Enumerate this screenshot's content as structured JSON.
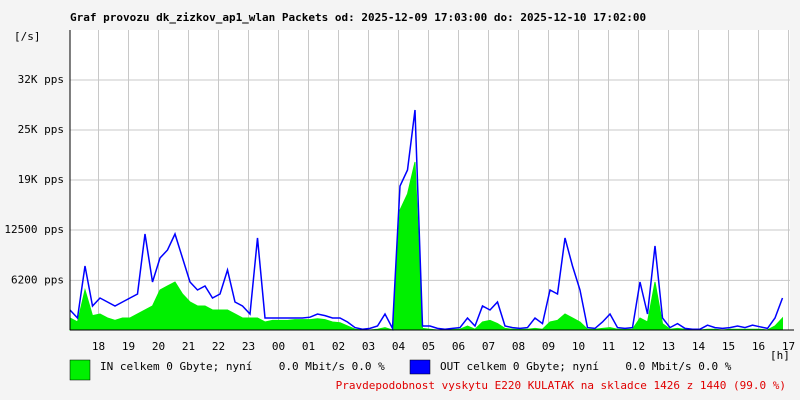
{
  "chart_data": {
    "type": "area-line",
    "title": "Graf provozu dk_zizkov_ap1_wlan Packets od: 2025-12-09 17:03:00 do: 2025-12-10 17:02:00",
    "y_unit": "[/s]",
    "x_unit": "[h]",
    "note": "Pravdepodobnost vyskytu E220 KULATAK na skladce 1426 z 1440 (99.0 %)",
    "grid": true,
    "xlim": [
      0,
      1440
    ],
    "xticks": [
      {
        "value": 57,
        "label": "18"
      },
      {
        "value": 117,
        "label": "19"
      },
      {
        "value": 177,
        "label": "20"
      },
      {
        "value": 237,
        "label": "21"
      },
      {
        "value": 297,
        "label": "22"
      },
      {
        "value": 357,
        "label": "23"
      },
      {
        "value": 417,
        "label": "00"
      },
      {
        "value": 477,
        "label": "01"
      },
      {
        "value": 537,
        "label": "02"
      },
      {
        "value": 597,
        "label": "03"
      },
      {
        "value": 657,
        "label": "04"
      },
      {
        "value": 717,
        "label": "05"
      },
      {
        "value": 777,
        "label": "06"
      },
      {
        "value": 837,
        "label": "07"
      },
      {
        "value": 897,
        "label": "08"
      },
      {
        "value": 957,
        "label": "09"
      },
      {
        "value": 1017,
        "label": "10"
      },
      {
        "value": 1077,
        "label": "11"
      },
      {
        "value": 1137,
        "label": "12"
      },
      {
        "value": 1197,
        "label": "13"
      },
      {
        "value": 1257,
        "label": "14"
      },
      {
        "value": 1317,
        "label": "15"
      },
      {
        "value": 1377,
        "label": "16"
      },
      {
        "value": 1437,
        "label": "17"
      }
    ],
    "ylim": [
      0,
      37500
    ],
    "yticks": [
      {
        "value": 6200,
        "label": "6200 pps"
      },
      {
        "value": 12500,
        "label": "12500 pps"
      },
      {
        "value": 18750,
        "label": "19K pps"
      },
      {
        "value": 25000,
        "label": "25K pps"
      },
      {
        "value": 31250,
        "label": "32K pps"
      }
    ],
    "x": [
      0,
      15,
      30,
      45,
      60,
      75,
      90,
      105,
      120,
      135,
      150,
      165,
      180,
      195,
      210,
      225,
      240,
      255,
      270,
      285,
      300,
      315,
      330,
      345,
      360,
      375,
      390,
      405,
      420,
      435,
      450,
      465,
      480,
      495,
      510,
      525,
      540,
      555,
      570,
      585,
      600,
      615,
      630,
      645,
      660,
      675,
      690,
      705,
      720,
      735,
      750,
      765,
      780,
      795,
      810,
      825,
      840,
      855,
      870,
      885,
      900,
      915,
      930,
      945,
      960,
      975,
      990,
      1005,
      1020,
      1035,
      1050,
      1065,
      1080,
      1095,
      1110,
      1125,
      1140,
      1155,
      1170,
      1185,
      1200,
      1215,
      1230,
      1245,
      1260,
      1275,
      1290,
      1305,
      1320,
      1335,
      1350,
      1365,
      1380,
      1395,
      1410,
      1425
    ],
    "series": [
      {
        "name": "IN celkem 0 Gbyte; nyní    0.0 Mbit/s 0.0 %",
        "color": "#00f000",
        "style": "area",
        "values": [
          1500,
          1000,
          5000,
          1800,
          2000,
          1500,
          1200,
          1500,
          1500,
          2000,
          2500,
          3000,
          5000,
          5500,
          6000,
          4500,
          3500,
          3000,
          3000,
          2500,
          2500,
          2500,
          2000,
          1500,
          1500,
          1500,
          1000,
          1200,
          1200,
          1200,
          1300,
          1300,
          1300,
          1400,
          1300,
          1000,
          900,
          500,
          100,
          0,
          0,
          100,
          300,
          0,
          15000,
          17000,
          21000,
          200,
          100,
          0,
          0,
          100,
          100,
          500,
          100,
          1000,
          1200,
          800,
          200,
          100,
          100,
          100,
          200,
          100,
          1000,
          1200,
          2000,
          1500,
          1000,
          100,
          100,
          200,
          300,
          100,
          100,
          100,
          1500,
          1000,
          6000,
          800,
          100,
          200,
          100,
          0,
          0,
          100,
          100,
          0,
          100,
          100,
          100,
          100,
          100,
          0,
          500,
          1500
        ]
      },
      {
        "name": "OUT celkem 0 Gbyte; nyní    0.0 Mbit/s 0.0 %",
        "color": "#0000ff",
        "style": "line",
        "values": [
          2500,
          1500,
          8000,
          3000,
          4000,
          3500,
          3000,
          3500,
          4000,
          4500,
          12000,
          6000,
          9000,
          10000,
          12000,
          9000,
          6000,
          5000,
          5500,
          4000,
          4500,
          7500,
          3500,
          3000,
          2000,
          11500,
          1500,
          1500,
          1500,
          1500,
          1500,
          1500,
          1600,
          2000,
          1800,
          1500,
          1500,
          1000,
          300,
          100,
          200,
          500,
          2000,
          200,
          18000,
          20000,
          27500,
          500,
          500,
          200,
          100,
          200,
          300,
          1500,
          500,
          3000,
          2500,
          3500,
          500,
          300,
          200,
          300,
          1500,
          800,
          5000,
          4500,
          11500,
          8000,
          5000,
          300,
          200,
          1000,
          2000,
          300,
          200,
          300,
          6000,
          2000,
          10500,
          1500,
          300,
          800,
          200,
          100,
          100,
          600,
          300,
          200,
          300,
          500,
          300,
          600,
          400,
          200,
          1500,
          4000
        ]
      }
    ]
  }
}
